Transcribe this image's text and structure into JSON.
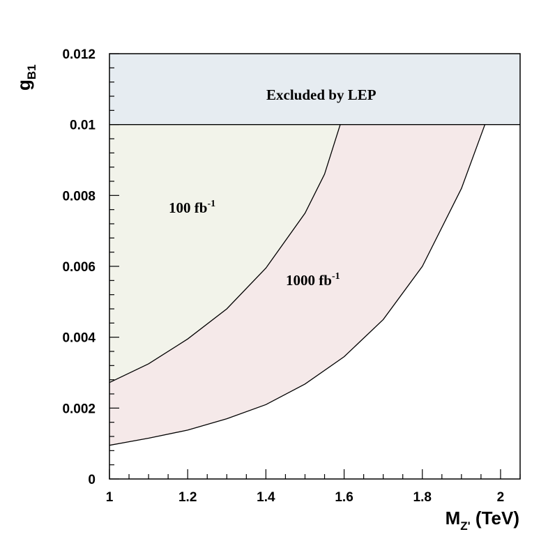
{
  "chart_data": {
    "type": "area",
    "xlabel": {
      "main": "M",
      "sub": "Z'",
      "unit": " (TeV)"
    },
    "ylabel": {
      "main": "g",
      "sub": "B1"
    },
    "xlim": [
      1.0,
      2.05
    ],
    "ylim": [
      0.0,
      0.012
    ],
    "x_ticks": [
      {
        "value": 1.0,
        "label": "1"
      },
      {
        "value": 1.2,
        "label": "1.2"
      },
      {
        "value": 1.4,
        "label": "1.4"
      },
      {
        "value": 1.6,
        "label": "1.6"
      },
      {
        "value": 1.8,
        "label": "1.8"
      },
      {
        "value": 2.0,
        "label": "2"
      }
    ],
    "y_ticks": [
      {
        "value": 0.0,
        "label": "0"
      },
      {
        "value": 0.002,
        "label": "0.002"
      },
      {
        "value": 0.004,
        "label": "0.004"
      },
      {
        "value": 0.006,
        "label": "0.006"
      },
      {
        "value": 0.008,
        "label": "0.008"
      },
      {
        "value": 0.01,
        "label": "0.01"
      },
      {
        "value": 0.012,
        "label": "0.012"
      }
    ],
    "lep_limit": 0.01,
    "series": [
      {
        "luminosity": "100",
        "color": "#f2f3ea",
        "x": [
          1.0,
          1.1,
          1.2,
          1.3,
          1.4,
          1.5,
          1.55,
          1.59
        ],
        "y": [
          0.00272,
          0.00325,
          0.00395,
          0.0048,
          0.00595,
          0.0075,
          0.0086,
          0.01
        ]
      },
      {
        "luminosity": "1000",
        "color": "#f5e9e9",
        "x": [
          1.0,
          1.1,
          1.2,
          1.3,
          1.4,
          1.5,
          1.6,
          1.7,
          1.8,
          1.9,
          1.96
        ],
        "y": [
          0.00095,
          0.00115,
          0.00138,
          0.0017,
          0.0021,
          0.00268,
          0.00345,
          0.0045,
          0.006,
          0.0082,
          0.01
        ]
      }
    ],
    "annotations": [
      {
        "id": "lep",
        "text": "Excluded by LEP",
        "color": "#e6ecf1"
      },
      {
        "id": "lum100",
        "base": "100 fb",
        "sup": "-1"
      },
      {
        "id": "lum1000",
        "base": "1000 fb",
        "sup": "-1"
      }
    ]
  }
}
